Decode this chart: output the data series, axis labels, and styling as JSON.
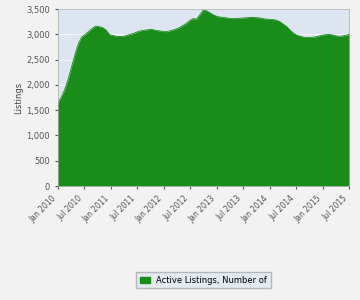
{
  "title": "",
  "ylabel": "Listings",
  "ylim": [
    0,
    3500
  ],
  "yticks": [
    0,
    500,
    1000,
    1500,
    2000,
    2500,
    3000,
    3500
  ],
  "fill_color": "#1a8c1a",
  "bg_plot_color": "#dde5f0",
  "fig_bg_color": "#f2f2f2",
  "legend_label": "Active Listings, Number of",
  "x_labels": [
    "Jan 2010",
    "Jul 2010",
    "Jan 2011",
    "Jul 2011",
    "Jan 2012",
    "Jul 2012",
    "Jan 2013",
    "Jul 2013",
    "Jan 2014",
    "Jul 2014",
    "Jan 2015",
    "Jul 2015"
  ],
  "values": [
    1640,
    1750,
    1900,
    2100,
    2350,
    2600,
    2820,
    2950,
    3000,
    3060,
    3120,
    3160,
    3150,
    3130,
    3080,
    2990,
    2975,
    2960,
    2955,
    2960,
    2980,
    3000,
    3020,
    3050,
    3070,
    3080,
    3090,
    3100,
    3080,
    3070,
    3060,
    3050,
    3060,
    3080,
    3100,
    3130,
    3170,
    3210,
    3270,
    3310,
    3300,
    3390,
    3480,
    3460,
    3420,
    3380,
    3350,
    3340,
    3330,
    3320,
    3310,
    3310,
    3315,
    3320,
    3325,
    3330,
    3335,
    3330,
    3325,
    3310,
    3300,
    3295,
    3290,
    3280,
    3250,
    3200,
    3150,
    3080,
    3020,
    2980,
    2960,
    2940,
    2935,
    2940,
    2945,
    2960,
    2980,
    2990,
    3000,
    2990,
    2970,
    2960,
    2965,
    2980,
    3000
  ]
}
